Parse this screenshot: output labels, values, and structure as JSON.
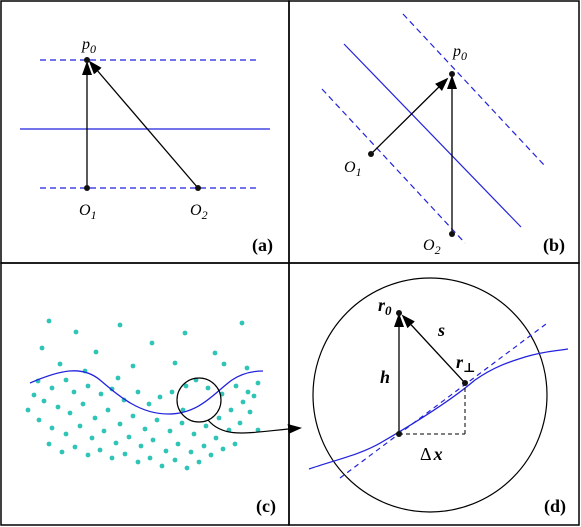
{
  "colors": {
    "curve": "#2222dd",
    "dots": "#2ec4b6",
    "ink": "#000000"
  },
  "panel_a": {
    "p0": "p",
    "p0_sub": "0",
    "o1": "O",
    "o1_sub": "1",
    "o2": "O",
    "o2_sub": "2",
    "tag": "(a)"
  },
  "panel_b": {
    "p0": "p",
    "p0_sub": "0",
    "o1": "O",
    "o1_sub": "1",
    "o2": "O",
    "o2_sub": "2",
    "tag": "(b)"
  },
  "panel_c": {
    "tag": "(c)"
  },
  "panel_d": {
    "r0": "r",
    "r0_sub": "0",
    "s": "s",
    "h": "h",
    "rperp": "r",
    "rperp_sub": "⊥",
    "dx": "Δ",
    "dx_var": "x",
    "tag": "(d)"
  }
}
